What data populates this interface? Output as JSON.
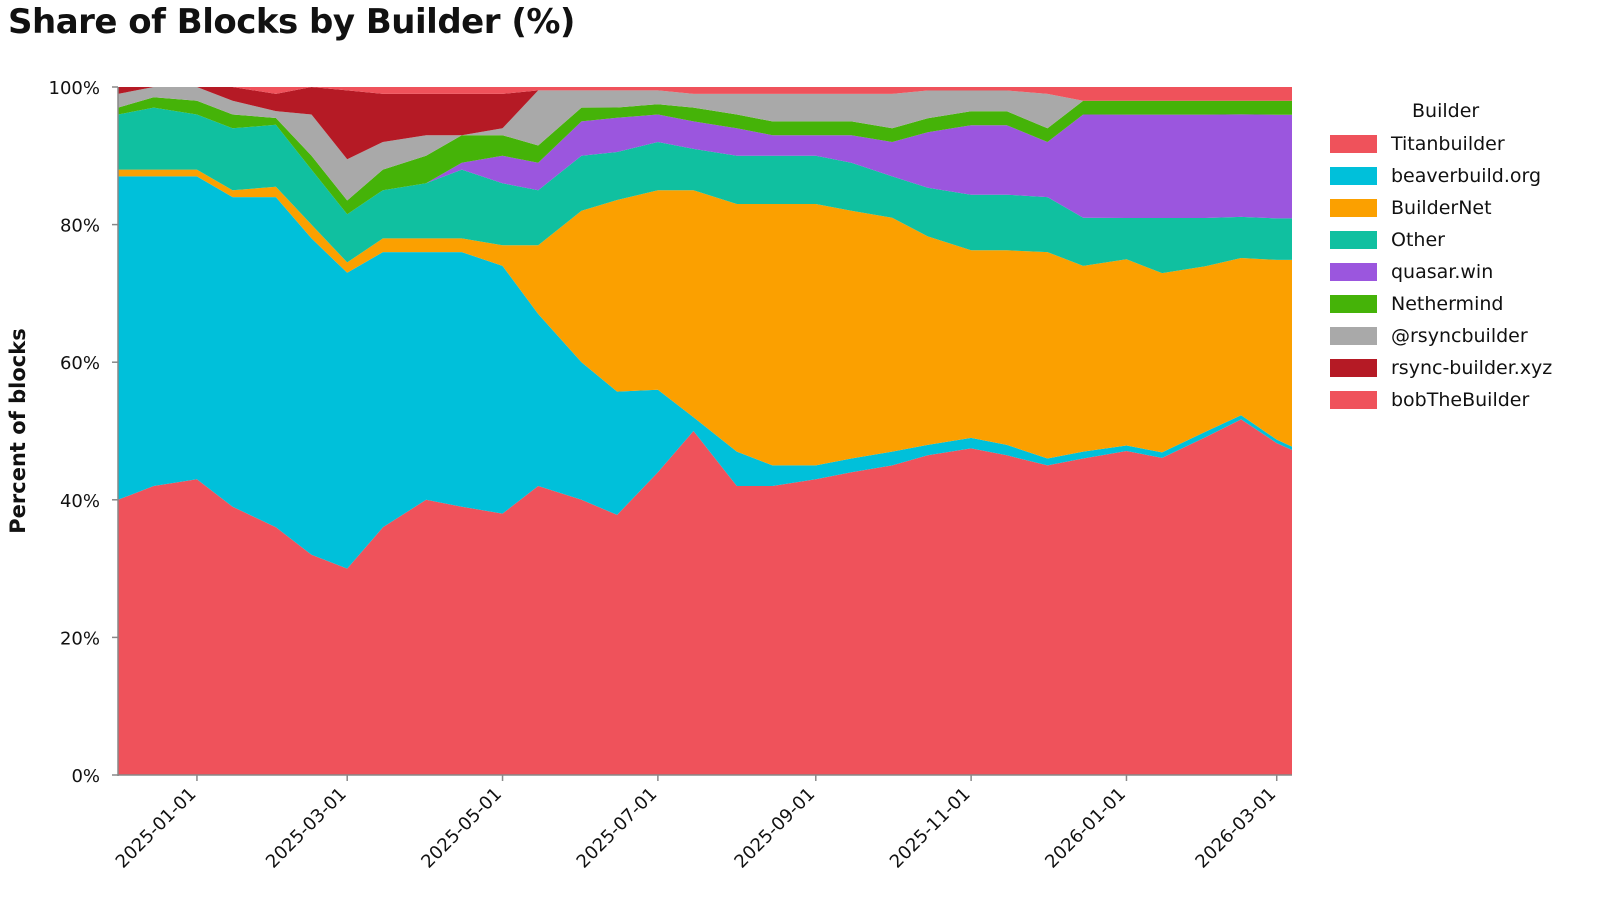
{
  "chart_data": {
    "type": "area",
    "stacked": true,
    "normalized_percent": true,
    "title": "Share of Blocks by Builder (%)",
    "ylabel": "Percent of blocks",
    "xlabel": "",
    "ylim": [
      0,
      100
    ],
    "y_ticks": [
      "0%",
      "20%",
      "40%",
      "60%",
      "80%",
      "100%"
    ],
    "x_ticks": [
      "2025-01-01",
      "2025-03-01",
      "2025-05-01",
      "2025-07-01",
      "2025-09-01",
      "2025-11-01",
      "2026-01-01",
      "2026-03-01"
    ],
    "x_start": "2024-12-01",
    "x_end": "2026-03-07",
    "legend_title": "Builder",
    "legend_placement": "right",
    "grid": false,
    "x": [
      "2024-12-01",
      "2024-12-15",
      "2025-01-01",
      "2025-01-15",
      "2025-02-01",
      "2025-02-15",
      "2025-03-01",
      "2025-03-15",
      "2025-04-01",
      "2025-04-15",
      "2025-05-01",
      "2025-05-15",
      "2025-06-01",
      "2025-06-15",
      "2025-07-01",
      "2025-07-15",
      "2025-08-01",
      "2025-08-15",
      "2025-09-01",
      "2025-09-15",
      "2025-10-01",
      "2025-10-15",
      "2025-11-01",
      "2025-11-15",
      "2025-12-01",
      "2025-12-15",
      "2026-01-01",
      "2026-01-15",
      "2026-02-01",
      "2026-02-15",
      "2026-03-01",
      "2026-03-07"
    ],
    "series": [
      {
        "name": "Titanbuilder",
        "color": "#ef525b",
        "values": [
          40,
          42,
          43,
          39,
          36,
          32,
          30,
          36,
          40,
          39,
          38,
          42,
          40,
          38,
          44,
          50,
          42,
          42,
          43,
          44,
          45,
          46,
          47,
          46,
          45,
          46,
          47,
          46,
          49,
          52,
          48,
          47
        ]
      },
      {
        "name": "beaverbuild.org",
        "color": "#00c0da",
        "values": [
          47,
          45,
          44,
          45,
          48,
          46,
          43,
          40,
          36,
          37,
          36,
          25,
          20,
          18,
          12,
          2,
          5,
          3,
          2,
          2,
          2,
          1.5,
          1.5,
          1.5,
          1,
          1,
          0.8,
          0.8,
          0.8,
          0.6,
          0.5,
          0.5
        ]
      },
      {
        "name": "BuilderNet",
        "color": "#fba000",
        "values": [
          1,
          1,
          1,
          1,
          1.5,
          2,
          1.5,
          2,
          2,
          2,
          3,
          10,
          22,
          28,
          29,
          33,
          36,
          38,
          38,
          36,
          34,
          30,
          27,
          28,
          30,
          27,
          27,
          26,
          24,
          23,
          26,
          27
        ]
      },
      {
        "name": "Other",
        "color": "#10c0a0",
        "values": [
          8,
          9,
          8,
          9,
          9,
          8,
          7,
          7,
          8,
          10,
          9,
          8,
          8,
          7,
          7,
          6,
          7,
          7,
          7,
          7,
          6,
          7,
          8,
          8,
          8,
          7,
          6,
          8,
          7,
          6,
          6,
          6
        ]
      },
      {
        "name": "quasar.win",
        "color": "#9b56de",
        "values": [
          0,
          0,
          0,
          0,
          0,
          0,
          0,
          0,
          0,
          1,
          4,
          4,
          5,
          5,
          4,
          4,
          4,
          3,
          3,
          4,
          5,
          8,
          10,
          10,
          8,
          15,
          15,
          15,
          15,
          15,
          15,
          15
        ]
      },
      {
        "name": "Nethermind",
        "color": "#45b308",
        "values": [
          1,
          1.5,
          2,
          2,
          1,
          2,
          2,
          3,
          4,
          4,
          3,
          2.5,
          2,
          1.5,
          1.5,
          2,
          2,
          2,
          2,
          2,
          2,
          2,
          2,
          2,
          2,
          2,
          2,
          2,
          2,
          2,
          2,
          2
        ]
      },
      {
        "name": "@rsyncbuilder",
        "color": "#a9a9a9",
        "values": [
          2,
          1.5,
          2,
          2,
          1,
          6,
          6,
          4,
          3,
          0,
          1,
          8,
          2.5,
          2.5,
          2,
          2,
          3,
          4,
          4,
          4,
          5,
          4,
          3,
          3,
          5,
          0,
          0,
          0,
          0,
          0,
          0,
          0
        ]
      },
      {
        "name": "rsync-builder.xyz",
        "color": "#b51a25",
        "values": [
          1,
          0,
          0,
          2,
          2.5,
          4,
          10,
          7,
          6,
          6,
          5,
          0,
          0,
          0,
          0,
          0,
          0,
          0,
          0,
          0,
          0,
          0,
          0,
          0,
          0,
          0,
          0,
          0,
          0,
          0,
          0,
          0
        ]
      },
      {
        "name": "bobTheBuilder",
        "color": "#ef525b",
        "values": [
          0,
          0,
          0,
          0,
          1,
          0,
          0.5,
          1,
          1,
          1,
          1,
          0.5,
          0.5,
          0.5,
          0.5,
          1,
          1,
          1,
          1,
          1,
          1,
          0.5,
          0.5,
          0.5,
          1,
          2,
          2,
          2,
          2,
          2,
          2,
          2
        ]
      }
    ]
  }
}
